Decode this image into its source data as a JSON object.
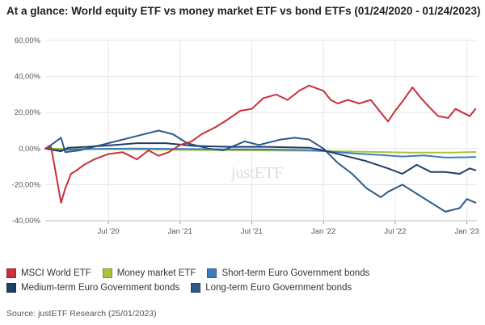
{
  "title": "At a glance: World equity ETF vs money market ETF vs bond ETFs (01/24/2020 - 01/24/2023)",
  "source": "Source: justETF Research (25/01/2023)",
  "watermark": "justETF",
  "chart_data": {
    "type": "line",
    "ylim": [
      -40,
      60
    ],
    "yticks": [
      {
        "value": 60,
        "label": "60,00%"
      },
      {
        "value": 40,
        "label": "40,00%"
      },
      {
        "value": 20,
        "label": "20,00%"
      },
      {
        "value": 0,
        "label": "0,00%"
      },
      {
        "value": -20,
        "label": "-20,00%"
      },
      {
        "value": -40,
        "label": "-40,00%"
      }
    ],
    "xlim": [
      2020.06,
      2023.07
    ],
    "xticks": [
      {
        "value": 2020.5,
        "label": "Jul '20"
      },
      {
        "value": 2021.0,
        "label": "Jan '21"
      },
      {
        "value": 2021.5,
        "label": "Jul '21"
      },
      {
        "value": 2022.0,
        "label": "Jan '22"
      },
      {
        "value": 2022.5,
        "label": "Jul '22"
      },
      {
        "value": 2023.0,
        "label": "Jan '23"
      }
    ],
    "grid": true,
    "legend": "bottom",
    "series": [
      {
        "name": "MSCI World ETF",
        "color": "#c8303a",
        "x": [
          2020.06,
          2020.1,
          2020.13,
          2020.17,
          2020.2,
          2020.24,
          2020.28,
          2020.33,
          2020.4,
          2020.5,
          2020.6,
          2020.7,
          2020.78,
          2020.85,
          2020.92,
          2021.0,
          2021.08,
          2021.15,
          2021.25,
          2021.33,
          2021.42,
          2021.5,
          2021.58,
          2021.67,
          2021.75,
          2021.83,
          2021.9,
          2022.0,
          2022.05,
          2022.1,
          2022.17,
          2022.25,
          2022.33,
          2022.4,
          2022.45,
          2022.5,
          2022.55,
          2022.62,
          2022.68,
          2022.75,
          2022.8,
          2022.87,
          2022.92,
          2022.97,
          2023.02,
          2023.06
        ],
        "y": [
          0,
          1,
          -12,
          -30,
          -22,
          -14,
          -12,
          -9,
          -6,
          -3,
          -2,
          -6,
          -1,
          -4,
          -2,
          2,
          4,
          8,
          12,
          16,
          21,
          22,
          28,
          30,
          27,
          32,
          35,
          32,
          27,
          25,
          27,
          25,
          27,
          20,
          15,
          21,
          26,
          34,
          28,
          22,
          18,
          17,
          22,
          20,
          18,
          22
        ]
      },
      {
        "name": "Money market ETF",
        "color": "#a8c43c",
        "x": [
          2020.06,
          2020.5,
          2021.0,
          2021.5,
          2022.0,
          2022.3,
          2022.6,
          2022.9,
          2023.06
        ],
        "y": [
          0,
          -0.3,
          -0.7,
          -1.0,
          -1.3,
          -1.8,
          -2.2,
          -2.2,
          -1.9
        ]
      },
      {
        "name": "Short-term Euro Government bonds",
        "color": "#3e7dbd",
        "x": [
          2020.06,
          2020.17,
          2020.3,
          2020.5,
          2020.7,
          2021.0,
          2021.3,
          2021.6,
          2021.9,
          2022.0,
          2022.2,
          2022.4,
          2022.55,
          2022.7,
          2022.85,
          2023.0,
          2023.06
        ],
        "y": [
          0,
          -0.8,
          -0.3,
          -0.1,
          0,
          -0.2,
          -0.4,
          -0.5,
          -0.9,
          -1.4,
          -2.6,
          -3.6,
          -4.4,
          -3.8,
          -5.0,
          -4.8,
          -4.6
        ]
      },
      {
        "name": "Medium-term Euro Government bonds",
        "color": "#1f3f66",
        "x": [
          2020.06,
          2020.17,
          2020.22,
          2020.35,
          2020.55,
          2020.7,
          2020.9,
          2021.1,
          2021.35,
          2021.6,
          2021.9,
          2022.0,
          2022.15,
          2022.3,
          2022.45,
          2022.55,
          2022.65,
          2022.75,
          2022.85,
          2022.95,
          2023.02,
          2023.06
        ],
        "y": [
          0,
          -1.5,
          0.5,
          1,
          2,
          3,
          3,
          1.5,
          1,
          1,
          0.5,
          -1,
          -4,
          -7,
          -11,
          -14,
          -9,
          -13,
          -13,
          -14,
          -11,
          -12
        ]
      },
      {
        "name": "Long-term Euro Government bonds",
        "color": "#2d5a8a",
        "x": [
          2020.06,
          2020.1,
          2020.17,
          2020.2,
          2020.3,
          2020.5,
          2020.7,
          2020.85,
          2020.95,
          2021.05,
          2021.2,
          2021.3,
          2021.45,
          2021.55,
          2021.7,
          2021.8,
          2021.9,
          2022.0,
          2022.1,
          2022.2,
          2022.3,
          2022.4,
          2022.45,
          2022.55,
          2022.65,
          2022.75,
          2022.85,
          2022.95,
          2023.0,
          2023.06
        ],
        "y": [
          0,
          2,
          6,
          -2,
          -1,
          3,
          7,
          10,
          8,
          3,
          0,
          -1,
          4,
          2,
          5,
          6,
          5,
          0,
          -8,
          -14,
          -22,
          -27,
          -24,
          -20,
          -25,
          -30,
          -35,
          -33,
          -28,
          -30
        ]
      }
    ]
  }
}
